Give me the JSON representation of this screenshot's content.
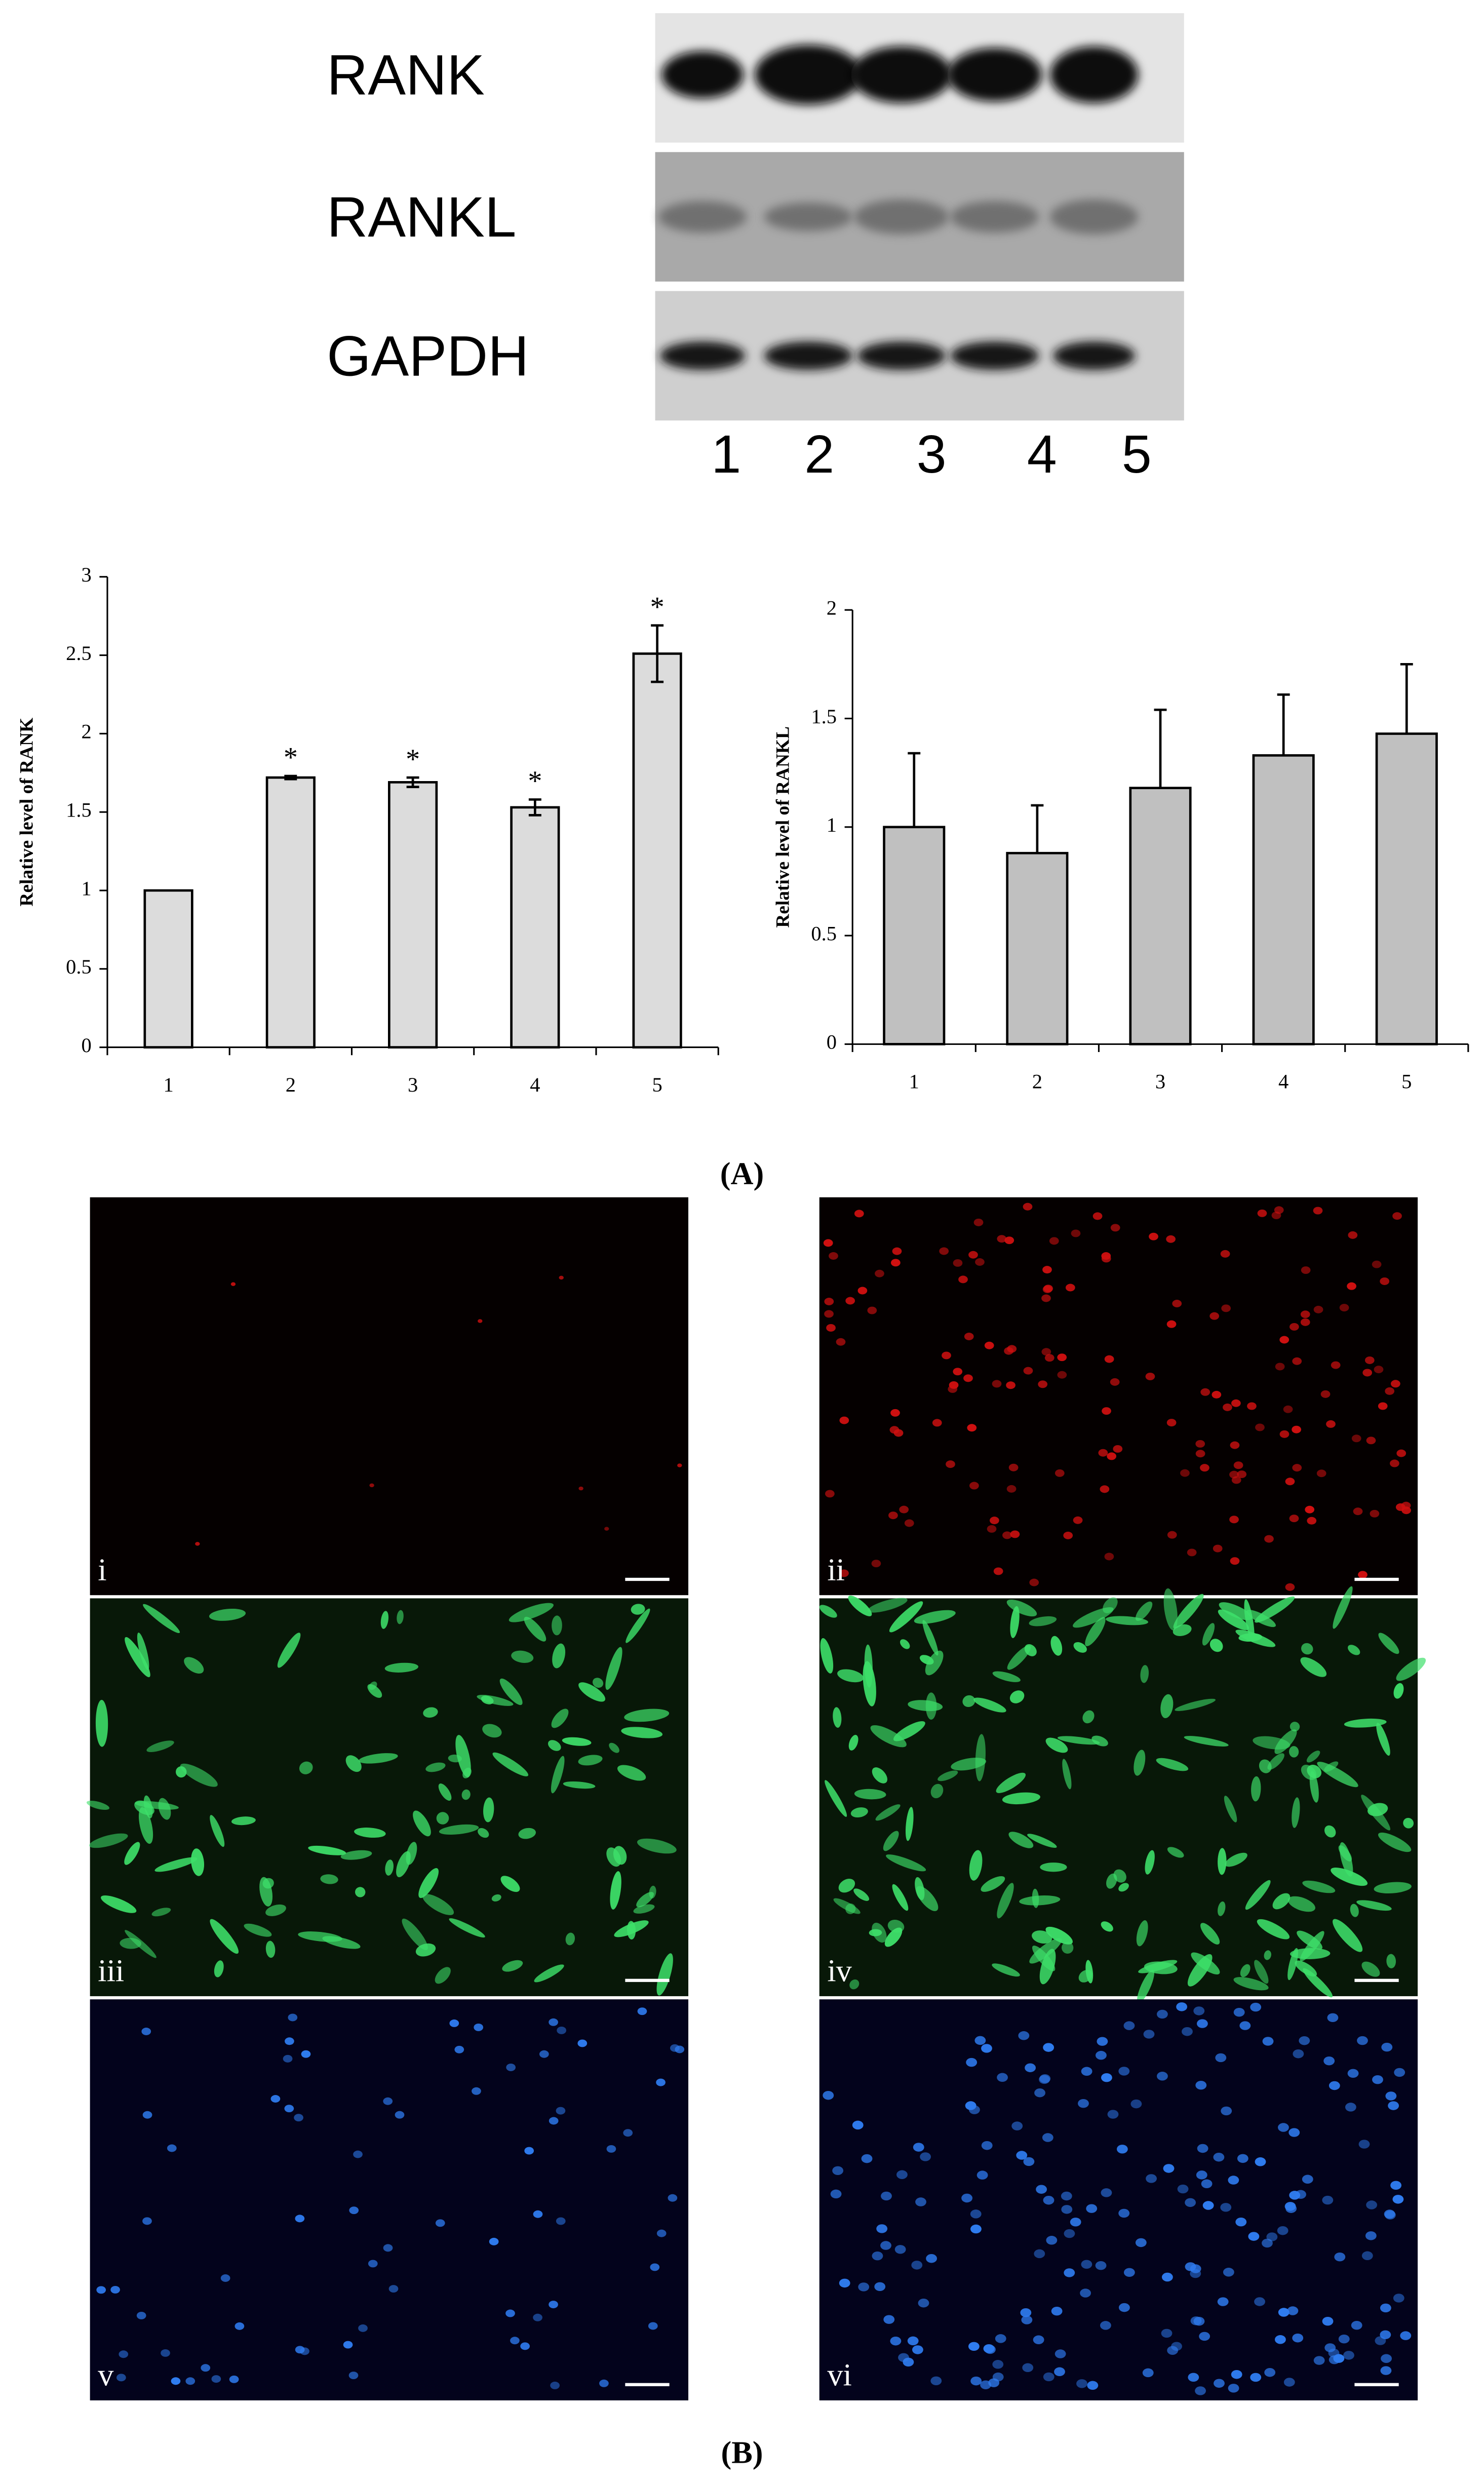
{
  "blot": {
    "rows": [
      "RANK",
      "RANKL",
      "GAPDH"
    ],
    "lanes": [
      "1",
      "2",
      "3",
      "4",
      "5"
    ]
  },
  "chart_data": [
    {
      "type": "bar",
      "ylabel": "Relative level of RANK",
      "categories": [
        "1",
        "2",
        "3",
        "4",
        "5"
      ],
      "values": [
        1,
        1.72,
        1.69,
        1.53,
        2.51
      ],
      "errors": [
        0,
        0.01,
        0.03,
        0.05,
        0.18
      ],
      "significance": [
        null,
        "*",
        "*",
        "*",
        "*"
      ],
      "color": "#dcdcdc",
      "ylim": [
        0,
        3
      ],
      "yticks": [
        0,
        0.5,
        1,
        1.5,
        2,
        2.5,
        3
      ]
    },
    {
      "type": "bar",
      "ylabel": "Relative level of RANKL",
      "categories": [
        "1",
        "2",
        "3",
        "4",
        "5"
      ],
      "values": [
        1,
        0.88,
        1.18,
        1.33,
        1.43
      ],
      "errors": [
        0.34,
        0.22,
        0.36,
        0.28,
        0.32
      ],
      "color": "#c0c0c0",
      "ylim": [
        0,
        2
      ],
      "yticks": [
        0,
        0.5,
        1,
        1.5,
        2
      ]
    }
  ],
  "panel_labels": [
    "(A)",
    "(B)"
  ],
  "images": [
    "i",
    "ii",
    "iii",
    "iv",
    "v",
    "vi"
  ]
}
